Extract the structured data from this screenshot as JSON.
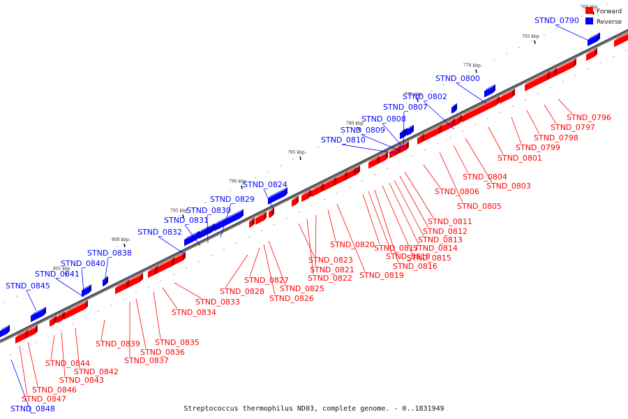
{
  "caption": "Streptococcus thermophilus ND03, complete genome. - 0..1831949",
  "legend": {
    "forward_label": "Forward",
    "reverse_label": "Reverse",
    "forward_color": "#ff0000",
    "reverse_color": "#0000ff"
  },
  "axis": {
    "tick_labels": [
      "760 kbp",
      "765 kbp",
      "770 kbp",
      "775 kbp",
      "780 kbp",
      "785 kbp",
      "790 kbp",
      "795 kbp",
      "800 kbp",
      "805 kbp"
    ]
  },
  "genes": {
    "forward": [
      "STND_0796",
      "STND_0797",
      "STND_0798",
      "STND_0799",
      "STND_0801",
      "STND_0803",
      "STND_0804",
      "STND_0805",
      "STND_0806",
      "STND_0811",
      "STND_0812",
      "STND_0813",
      "STND_0814",
      "STND_0815",
      "STND_0816",
      "STND_0817",
      "STND_0818",
      "STND_0819",
      "STND_0820",
      "STND_0821",
      "STND_0822",
      "STND_0823",
      "STND_0825",
      "STND_0826",
      "STND_0827",
      "STND_0828",
      "STND_0833",
      "STND_0834",
      "STND_0835",
      "STND_0836",
      "STND_0837",
      "STND_0839",
      "STND_0842",
      "STND_0843",
      "STND_0844",
      "STND_0846",
      "STND_0847"
    ],
    "reverse": [
      "STND_0790",
      "STND_0800",
      "STND_0802",
      "STND_0807",
      "STND_0808",
      "STND_0809",
      "STND_0810",
      "STND_0824",
      "STND_0829",
      "STND_0830",
      "STND_0831",
      "STND_0832",
      "STND_0838",
      "STND_0840",
      "STND_0841",
      "STND_0845",
      "STND_0848"
    ]
  }
}
